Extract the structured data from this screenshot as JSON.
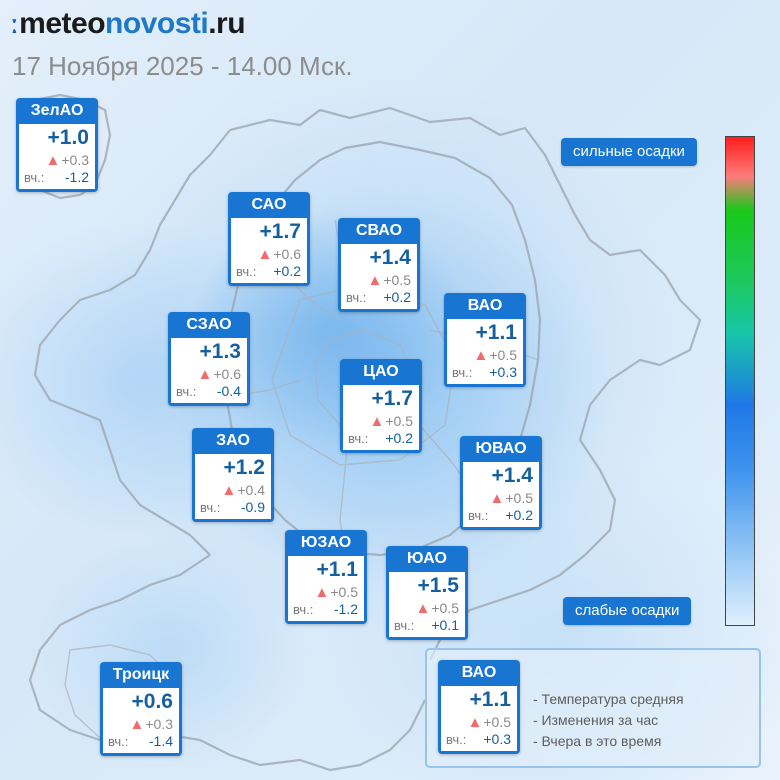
{
  "header": {
    "logo_mark": "ː",
    "logo_part1": "meteo",
    "logo_part2": "novosti",
    "logo_part3": ".ru",
    "date_line": "17 Ноября 2025 - 14.00 Мск."
  },
  "colors": {
    "card_header": "#1876d2",
    "temp_text": "#17609e",
    "increase_marker": "#f06b6b"
  },
  "yesterday_label": "вч.:",
  "change_icon": "triangle-up-icon",
  "districts": [
    {
      "id": "zelao",
      "name": "ЗелАО",
      "temp": "+1.0",
      "change": "+0.3",
      "yesterday": "-1.2"
    },
    {
      "id": "sao",
      "name": "САО",
      "temp": "+1.7",
      "change": "+0.6",
      "yesterday": "+0.2"
    },
    {
      "id": "svao",
      "name": "СВАО",
      "temp": "+1.4",
      "change": "+0.5",
      "yesterday": "+0.2"
    },
    {
      "id": "vao",
      "name": "ВАО",
      "temp": "+1.1",
      "change": "+0.5",
      "yesterday": "+0.3"
    },
    {
      "id": "szao",
      "name": "СЗАО",
      "temp": "+1.3",
      "change": "+0.6",
      "yesterday": "-0.4"
    },
    {
      "id": "cao",
      "name": "ЦАО",
      "temp": "+1.7",
      "change": "+0.5",
      "yesterday": "+0.2"
    },
    {
      "id": "zao",
      "name": "ЗАО",
      "temp": "+1.2",
      "change": "+0.4",
      "yesterday": "-0.9"
    },
    {
      "id": "yuvao",
      "name": "ЮВАО",
      "temp": "+1.4",
      "change": "+0.5",
      "yesterday": "+0.2"
    },
    {
      "id": "yuzao",
      "name": "ЮЗАО",
      "temp": "+1.1",
      "change": "+0.5",
      "yesterday": "-1.2"
    },
    {
      "id": "yuao",
      "name": "ЮАО",
      "temp": "+1.5",
      "change": "+0.5",
      "yesterday": "+0.1"
    },
    {
      "id": "troitsk",
      "name": "Троицк",
      "temp": "+0.6",
      "change": "+0.3",
      "yesterday": "-1.4"
    }
  ],
  "precip_scale": {
    "high_label": "сильные осадки",
    "low_label": "слабые осадки"
  },
  "legend": {
    "sample": {
      "name": "ВАО",
      "temp": "+1.1",
      "change": "+0.5",
      "yesterday": "+0.3"
    },
    "line_temp": "- Температура средняя",
    "line_change": "- Изменения за час",
    "line_yesterday": "- Вчера в это время"
  }
}
